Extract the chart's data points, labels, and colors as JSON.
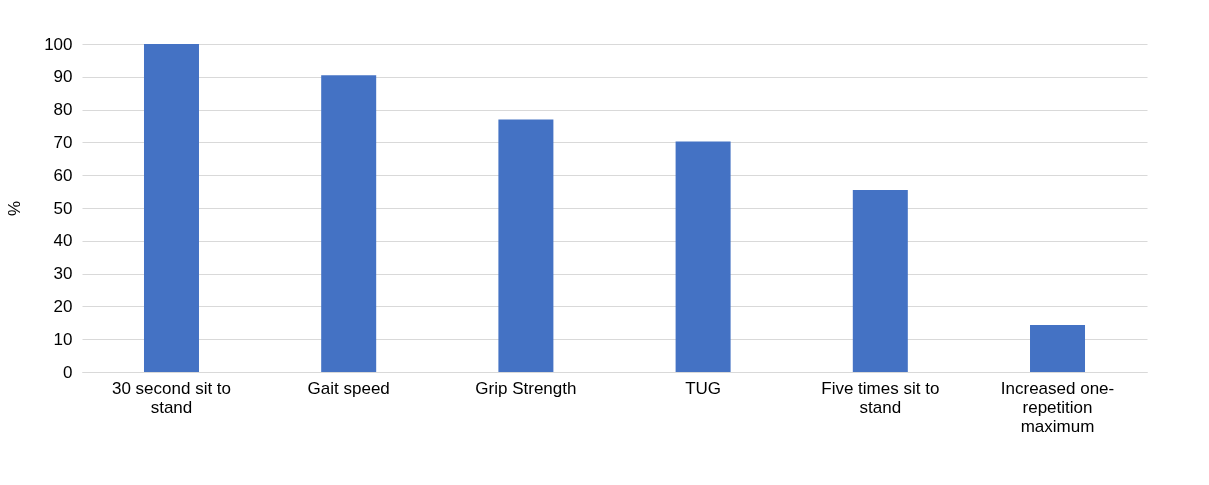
{
  "chart_data": {
    "type": "bar",
    "ylabel": "%",
    "categories": [
      "30 second sit to stand",
      "Gait speed",
      "Grip Strength",
      "TUG",
      "Five times sit to stand",
      "Increased one-repetition maximum"
    ],
    "values": [
      100,
      90.5,
      77,
      70.3,
      55.5,
      14.3
    ],
    "color": "#4472c4",
    "ylim": [
      0,
      100
    ],
    "yticks": [
      0,
      10,
      20,
      30,
      40,
      50,
      60,
      70,
      80,
      90,
      100
    ],
    "grid": "y"
  }
}
